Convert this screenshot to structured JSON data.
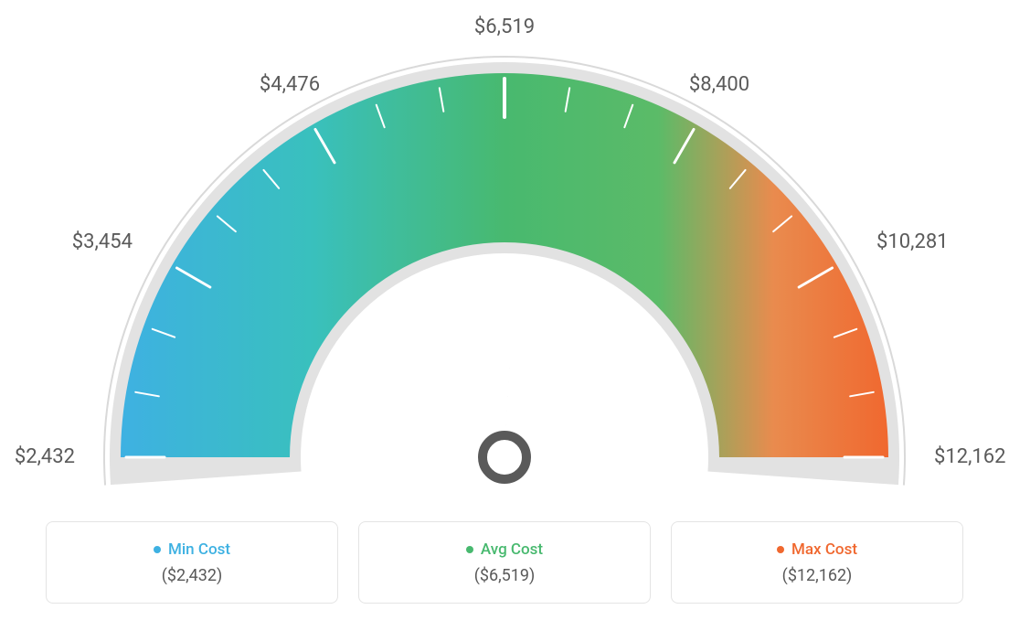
{
  "gauge": {
    "type": "gauge",
    "min": 2432,
    "max": 12162,
    "value": 6519,
    "tick_labels": [
      "$2,432",
      "$3,454",
      "$4,476",
      "$6,519",
      "$8,400",
      "$10,281",
      "$12,162"
    ],
    "tick_angles_deg": [
      -90,
      -60,
      -30,
      0,
      30,
      60,
      90
    ],
    "minor_ticks_between": 2,
    "outer_radius": 420,
    "inner_radius": 235,
    "arc_outline_width": 10,
    "arc_outline_color": "#e2e2e2",
    "gradient_stops": [
      {
        "pct": 0,
        "color": "#3eb1e2"
      },
      {
        "pct": 25,
        "color": "#39c0bd"
      },
      {
        "pct": 50,
        "color": "#48b96f"
      },
      {
        "pct": 70,
        "color": "#5bbb68"
      },
      {
        "pct": 85,
        "color": "#e98b4e"
      },
      {
        "pct": 100,
        "color": "#f0682f"
      }
    ],
    "tick_color": "#ffffff",
    "tick_width": 3,
    "label_fontsize": 22,
    "label_color": "#5a5a5a",
    "background_color": "#ffffff",
    "needle_color": "#5a5a5a",
    "needle_angle_deg": 3
  },
  "cards": [
    {
      "label": "Min Cost",
      "value": "($2,432)",
      "dot_color": "#3eb1e2",
      "text_color": "#3eb1e2"
    },
    {
      "label": "Avg Cost",
      "value": "($6,519)",
      "dot_color": "#48b96f",
      "text_color": "#48b96f"
    },
    {
      "label": "Max Cost",
      "value": "($12,162)",
      "dot_color": "#f0682f",
      "text_color": "#f0682f"
    }
  ]
}
